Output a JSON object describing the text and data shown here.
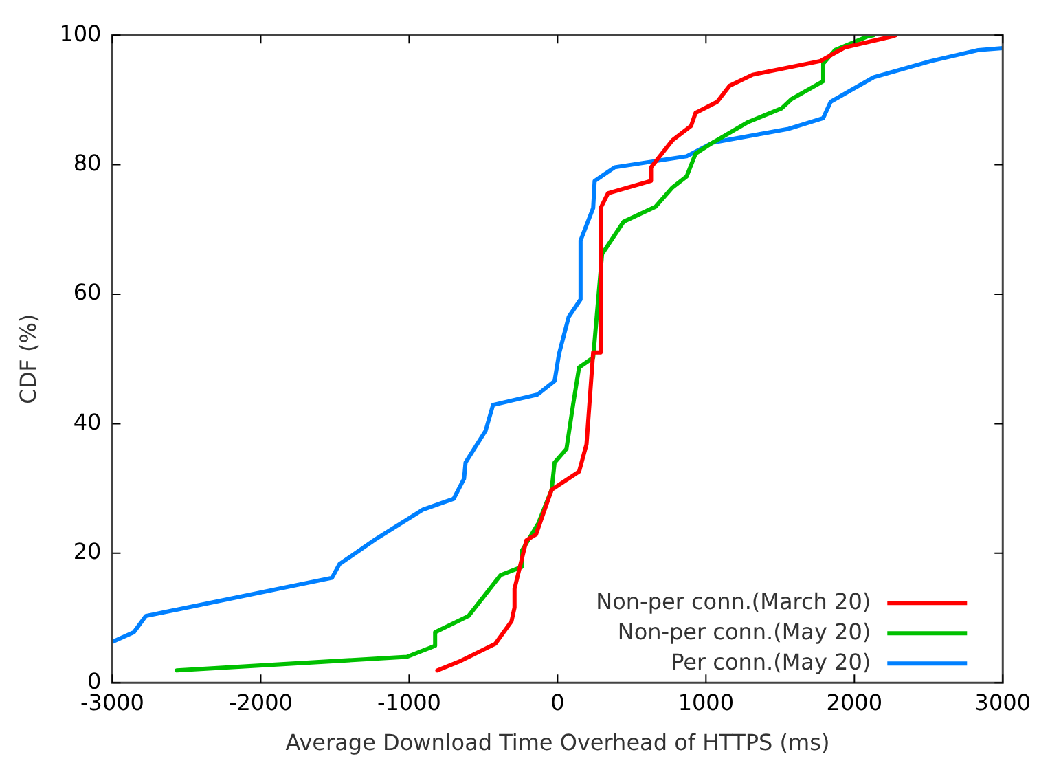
{
  "chart_data": {
    "type": "line",
    "xlabel": "Average Download Time Overhead of HTTPS (ms)",
    "ylabel": "CDF (%)",
    "xlim": [
      -3000,
      3000
    ],
    "xticks": [
      -3000,
      -2000,
      -1000,
      0,
      1000,
      2000,
      3000
    ],
    "ylim": [
      0,
      100
    ],
    "yticks": [
      0,
      20,
      40,
      60,
      80,
      100
    ],
    "grid": false,
    "legend": "bottom right",
    "marker": "none",
    "line_style": "solid",
    "series": [
      {
        "name": "Non-per conn.(March 20)",
        "color": "#ff0000",
        "x": [
          -810,
          -650,
          -420,
          -310,
          -290,
          -290,
          -210,
          -145,
          -40,
          145,
          195,
          240,
          290,
          290,
          340,
          630,
          630,
          775,
          900,
          930,
          1075,
          1160,
          1315,
          1770,
          1935,
          2255,
          2280
        ],
        "values": [
          1.9,
          3.4,
          6,
          9.5,
          11.6,
          14.5,
          22,
          22.9,
          29.8,
          32.6,
          36.8,
          51,
          51,
          73.3,
          75.6,
          77.5,
          79.6,
          83.8,
          86,
          88,
          89.7,
          92.2,
          93.9,
          96,
          98.1,
          99.8,
          100
        ]
      },
      {
        "name": "Non-per conn.(May 20)",
        "color": "#00c000",
        "x": [
          -2565,
          -1015,
          -825,
          -825,
          -600,
          -385,
          -240,
          -240,
          -130,
          -40,
          -20,
          60,
          105,
          145,
          240,
          300,
          445,
          660,
          775,
          870,
          930,
          1045,
          1285,
          1510,
          1575,
          1790,
          1790,
          1870,
          2090,
          2130
        ],
        "values": [
          1.9,
          4,
          5.7,
          7.8,
          10.3,
          16.6,
          17.9,
          20.4,
          24.6,
          29.8,
          34,
          36.1,
          43,
          48.7,
          50.2,
          66.2,
          71.2,
          73.5,
          76.5,
          78.2,
          81.7,
          83.4,
          86.6,
          88.7,
          90.1,
          92.9,
          95.6,
          97.7,
          99.8,
          100
        ]
      },
      {
        "name": "Per conn.(May 20)",
        "color": "#0080ff",
        "x": [
          -3000,
          -2855,
          -2775,
          -1520,
          -1470,
          -1230,
          -910,
          -700,
          -630,
          -620,
          -485,
          -435,
          -135,
          -20,
          10,
          75,
          155,
          155,
          240,
          250,
          385,
          870,
          1045,
          1550,
          1790,
          1840,
          2130,
          2515,
          2835,
          3000
        ],
        "values": [
          6.3,
          7.8,
          10.3,
          16.2,
          18.3,
          22.1,
          26.7,
          28.4,
          31.5,
          34,
          38.9,
          42.9,
          44.5,
          46.6,
          50.8,
          56.5,
          59.2,
          68.3,
          73.3,
          77.5,
          79.6,
          81.3,
          83.4,
          85.5,
          87.2,
          89.7,
          93.5,
          96,
          97.7,
          98
        ]
      }
    ]
  }
}
